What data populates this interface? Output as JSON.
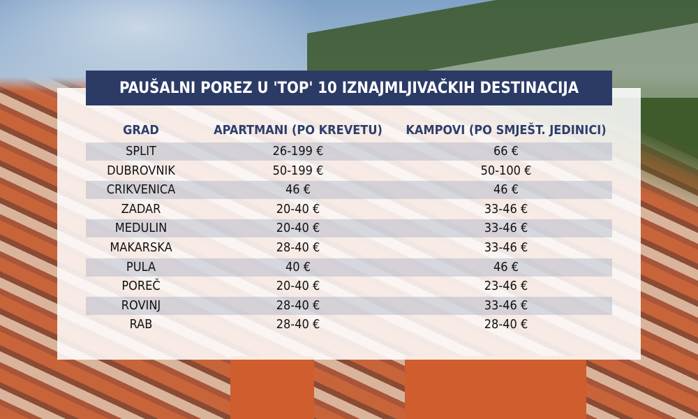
{
  "header": {
    "title": "PAUŠALNI POREZ U 'TOP' 10 IZNAJMLJIVAČKIH DESTINACIJA"
  },
  "table": {
    "columns": [
      "GRAD",
      "APARTMANI (PO KREVETU)",
      "KAMPOVI (PO SMJEŠT. JEDINICI)"
    ],
    "rows": [
      [
        "SPLIT",
        "26-199 €",
        "66 €"
      ],
      [
        "DUBROVNIK",
        "50-199 €",
        "50-100 €"
      ],
      [
        "CRIKVENICA",
        "46 €",
        "46 €"
      ],
      [
        "ZADAR",
        "20-40 €",
        "33-46 €"
      ],
      [
        "MEDULIN",
        "20-40 €",
        "33-46 €"
      ],
      [
        "MAKARSKA",
        "28-40 €",
        "33-46 €"
      ],
      [
        "PULA",
        "40 €",
        "46 €"
      ],
      [
        "POREČ",
        "20-40 €",
        "23-46 €"
      ],
      [
        "ROVINJ",
        "28-40 €",
        "33-46 €"
      ],
      [
        "RAB",
        "28-40 €",
        "28-40 €"
      ]
    ]
  }
}
